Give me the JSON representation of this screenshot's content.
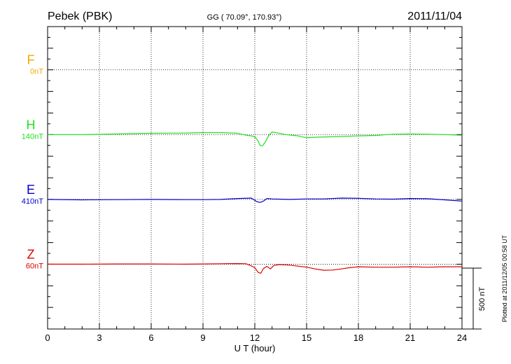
{
  "header": {
    "station": "Pebek (PBK)",
    "coords": "GG ( 70.09°, 170.93°)",
    "date": "2011/11/04"
  },
  "footer": {
    "plotted": "Plotted at 2011/12/05 00:58 UT"
  },
  "chart_data": {
    "type": "line",
    "xlabel": "U T (hour)",
    "xlim": [
      0,
      24
    ],
    "x_ticks": [
      0,
      3,
      6,
      9,
      12,
      15,
      18,
      21,
      24
    ],
    "x_tick_labels": [
      "0",
      "3",
      "6",
      "9",
      "12",
      "15",
      "18",
      "21",
      "24"
    ],
    "ylim_nT": [
      -400,
      1000
    ],
    "scale_bar": {
      "label": "500 nT",
      "value_nT": 500
    },
    "grid": true,
    "series": [
      {
        "name": "F",
        "baseline_label": "0nT",
        "color": "#f5a800",
        "baseline_nT": 800,
        "x": [],
        "y": []
      },
      {
        "name": "H",
        "baseline_label": "140nT",
        "color": "#1fe01f",
        "baseline_nT": 500,
        "x": [
          0,
          2,
          4,
          6,
          8,
          9,
          10,
          11,
          11.5,
          11.8,
          12.0,
          12.2,
          12.3,
          12.45,
          12.6,
          12.8,
          13.0,
          13.3,
          13.8,
          14.5,
          15.0,
          15.5,
          16.5,
          18,
          19,
          20,
          21,
          22,
          23,
          24
        ],
        "y": [
          0,
          0,
          3,
          6,
          7,
          9,
          9,
          6,
          -3,
          -6,
          -10,
          -30,
          -50,
          -52,
          -35,
          -5,
          12,
          8,
          0,
          -6,
          -15,
          -12,
          -10,
          -6,
          -4,
          2,
          3,
          2,
          0,
          -3
        ]
      },
      {
        "name": "E",
        "baseline_label": "410nT",
        "color": "#0000cc",
        "baseline_nT": 200,
        "x": [
          0,
          2,
          4,
          6,
          8,
          9,
          10,
          11,
          11.8,
          12.1,
          12.3,
          12.5,
          12.7,
          13.0,
          14.0,
          15.0,
          16.0,
          17.0,
          18.0,
          19.0,
          20.0,
          21.0,
          22.0,
          23.0,
          24.0
        ],
        "y": [
          0,
          -2,
          -1,
          0,
          -1,
          -1,
          0,
          4,
          6,
          -10,
          -14,
          -8,
          4,
          2,
          0,
          2,
          2,
          6,
          5,
          2,
          1,
          4,
          3,
          -2,
          -8
        ]
      },
      {
        "name": "Z",
        "baseline_label": "60nT",
        "color": "#dd0000",
        "baseline_nT": -100,
        "x": [
          0,
          2,
          4,
          6,
          8,
          9,
          10,
          11,
          11.5,
          11.8,
          12.0,
          12.2,
          12.35,
          12.5,
          12.7,
          12.9,
          13.1,
          13.4,
          14.0,
          15.0,
          15.5,
          16.0,
          16.5,
          17.0,
          17.5,
          18.0,
          19.0,
          20.0,
          21.0,
          22.0,
          23.0,
          24.0
        ],
        "y": [
          0,
          0,
          1,
          1,
          0,
          1,
          2,
          3,
          2,
          -8,
          -16,
          -38,
          -42,
          -20,
          -10,
          -22,
          -6,
          -2,
          -4,
          -14,
          -22,
          -28,
          -27,
          -22,
          -16,
          -12,
          -14,
          -14,
          -12,
          -14,
          -12,
          -12
        ]
      }
    ]
  }
}
